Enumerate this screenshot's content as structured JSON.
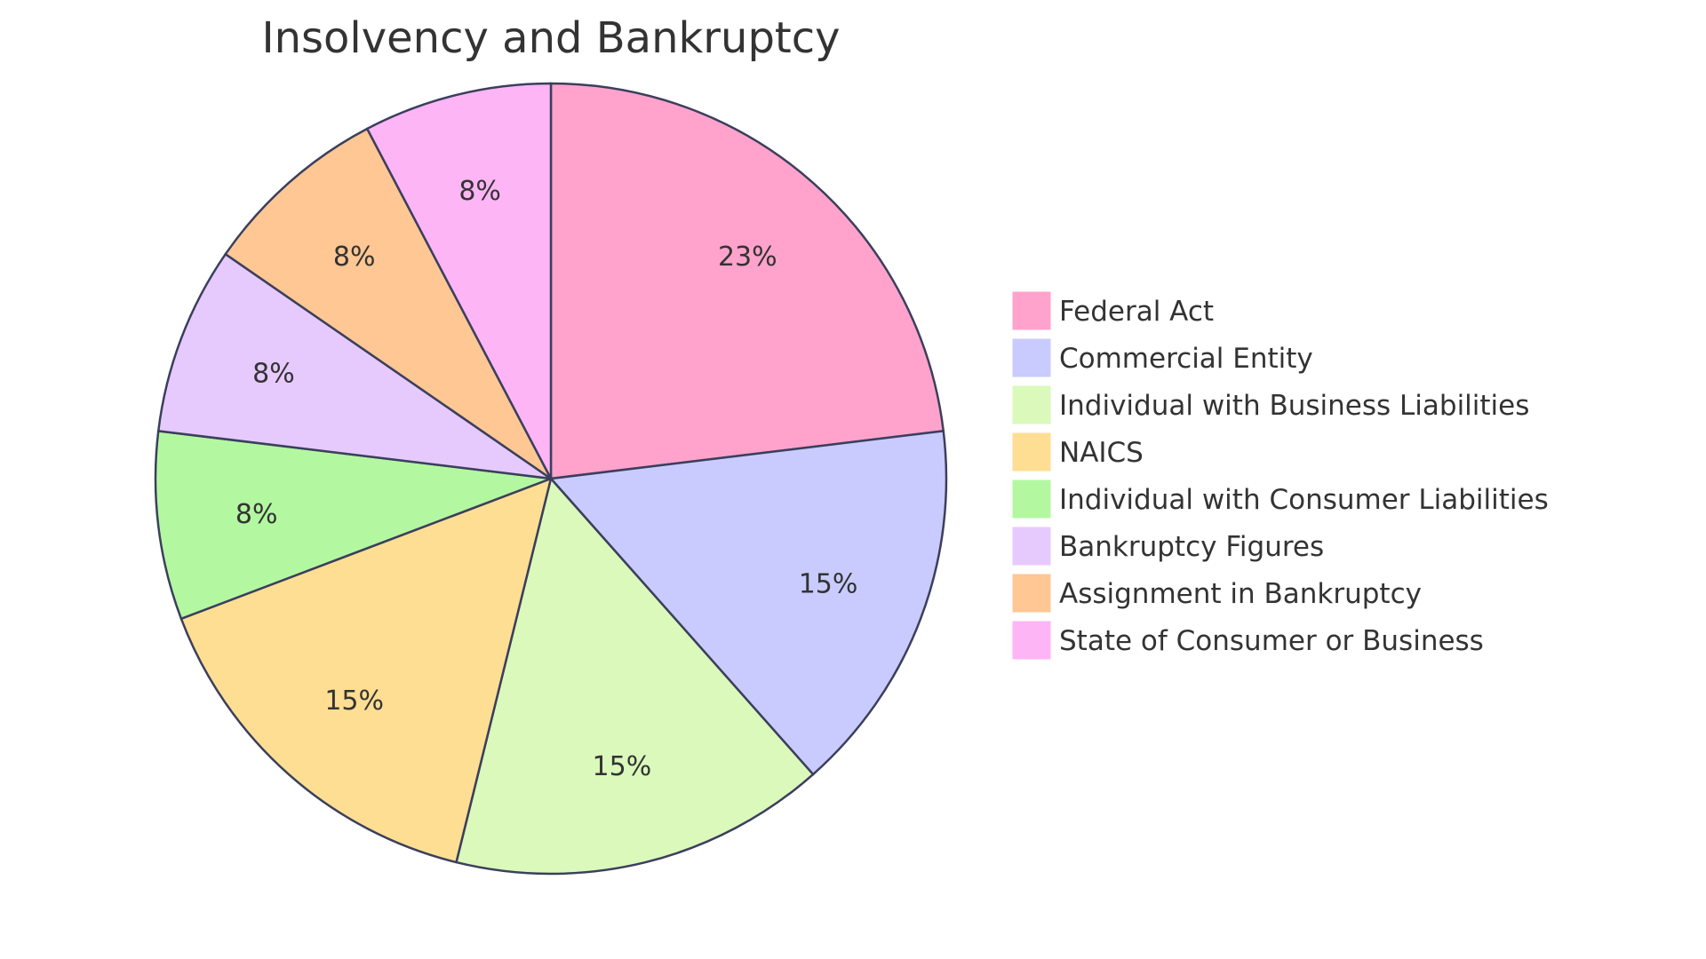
{
  "chart_data": {
    "type": "pie",
    "title": "Insolvency and Bankruptcy",
    "legend_position": "right",
    "slices": [
      {
        "label": "Federal Act",
        "value": 3,
        "percent_label": "23%",
        "color": "#FFA3CC"
      },
      {
        "label": "Commercial Entity",
        "value": 2,
        "percent_label": "15%",
        "color": "#C9CBFE"
      },
      {
        "label": "Individual with Business Liabilities",
        "value": 2,
        "percent_label": "15%",
        "color": "#DAF9BB"
      },
      {
        "label": "NAICS",
        "value": 2,
        "percent_label": "15%",
        "color": "#FEDE93"
      },
      {
        "label": "Individual with Consumer Liabilities",
        "value": 1,
        "percent_label": "8%",
        "color": "#B3F8A1"
      },
      {
        "label": "Bankruptcy Figures",
        "value": 1,
        "percent_label": "8%",
        "color": "#E6CAFD"
      },
      {
        "label": "Assignment in Bankruptcy",
        "value": 1,
        "percent_label": "8%",
        "color": "#FFC794"
      },
      {
        "label": "State of Consumer or Business",
        "value": 1,
        "percent_label": "8%",
        "color": "#FEB5F6"
      }
    ],
    "stroke_color": "#3B3F5C"
  }
}
